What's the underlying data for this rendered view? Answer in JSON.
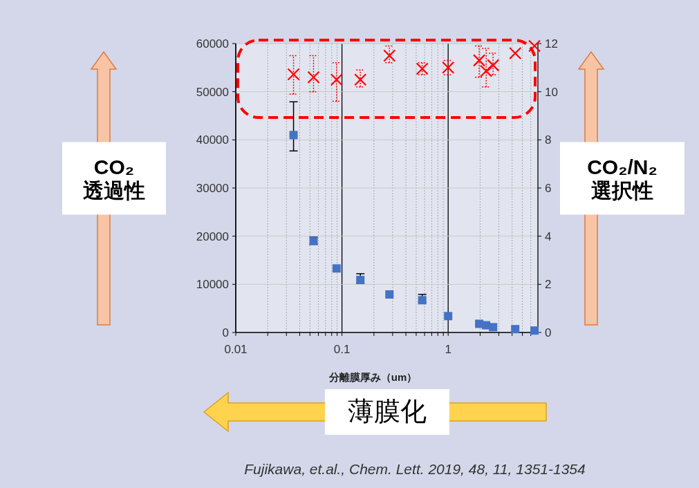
{
  "chart_data": {
    "type": "scatter",
    "xlabel": "分離膜厚み（um）",
    "ylabel": "CO₂\n透過性",
    "y2label": "CO₂/N₂\n選択性",
    "log": "x",
    "xlim": [
      0.01,
      7
    ],
    "xticks": [
      0.01,
      {
        "value": 0.02,
        "label": null
      },
      {
        "value": 0.03,
        "label": null
      },
      {
        "value": 0.04,
        "label": null
      },
      {
        "value": 0.05,
        "label": null
      },
      {
        "value": 0.06,
        "label": null
      },
      {
        "value": 0.07,
        "label": null
      },
      {
        "value": 0.08,
        "label": null
      },
      {
        "value": 0.09,
        "label": null
      },
      0.1,
      {
        "value": 0.2,
        "label": null
      },
      {
        "value": 0.3,
        "label": null
      },
      {
        "value": 0.4,
        "label": null
      },
      {
        "value": 0.5,
        "label": null
      },
      {
        "value": 0.6,
        "label": null
      },
      {
        "value": 0.7,
        "label": null
      },
      {
        "value": 0.8,
        "label": null
      },
      {
        "value": 0.9,
        "label": null
      },
      1,
      {
        "value": 2,
        "label": null
      },
      {
        "value": 3,
        "label": null
      },
      {
        "value": 4,
        "label": null
      },
      {
        "value": 5,
        "label": null
      },
      {
        "value": 6,
        "label": null
      }
    ],
    "ylim": [
      0,
      60000
    ],
    "yticks": [
      0,
      10000,
      20000,
      30000,
      40000,
      50000,
      60000
    ],
    "y2lim": [
      0,
      12
    ],
    "y2ticks": [
      0,
      2,
      4,
      6,
      8,
      10,
      12
    ],
    "grid": true,
    "series": [
      {
        "color": "#4472c4",
        "marker": "square",
        "x": [
          0.035,
          0.054,
          0.089,
          0.149,
          0.28,
          0.57,
          1.0,
          1.96,
          2.28,
          2.65,
          4.28,
          6.5
        ],
        "values": [
          41000,
          19000,
          13300,
          10900,
          7900,
          6700,
          3400,
          1800,
          1500,
          1100,
          700,
          400
        ],
        "errors": [
          [
            37700,
            47900
          ],
          [
            18300,
            19800
          ],
          null,
          [
            10300,
            12200
          ],
          null,
          [
            6300,
            7900
          ],
          null,
          null,
          null,
          null,
          null,
          null
        ]
      },
      {
        "color": "#ff0000",
        "marker": "cross",
        "axis": "y2",
        "x": [
          0.035,
          0.054,
          0.089,
          0.149,
          0.28,
          0.57,
          1.0,
          1.96,
          2.28,
          2.65,
          4.28,
          6.5
        ],
        "values": [
          10.72,
          10.6,
          10.5,
          10.5,
          11.5,
          10.95,
          11.0,
          11.3,
          10.86,
          11.1,
          11.6,
          11.9
        ],
        "errors": [
          [
            9.9,
            11.5
          ],
          [
            10.0,
            11.5
          ],
          [
            9.6,
            11.2
          ],
          [
            10.2,
            10.9
          ],
          [
            11.2,
            11.9
          ],
          [
            10.7,
            11.2
          ],
          [
            10.7,
            11.3
          ],
          [
            10.6,
            11.9
          ],
          [
            10.2,
            11.8
          ],
          [
            10.7,
            11.6
          ],
          null,
          null
        ]
      }
    ],
    "annotations": [
      "薄膜化",
      "Fujikawa, et.al., Chem. Lett. 2019, 48, 11, 1351-1354"
    ]
  }
}
